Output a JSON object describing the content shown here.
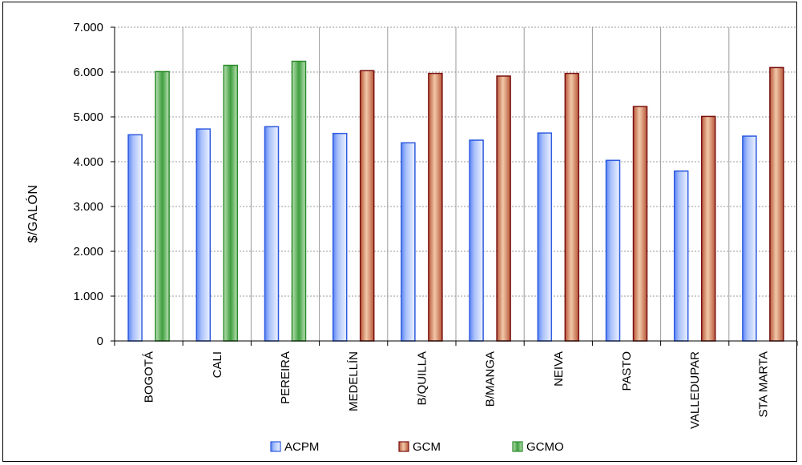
{
  "chart_data": {
    "type": "bar",
    "title": "",
    "xlabel": "",
    "ylabel": "$/GALÓN",
    "ylim": [
      0,
      7000
    ],
    "yticks": [
      0,
      1000,
      2000,
      3000,
      4000,
      5000,
      6000,
      7000
    ],
    "ytick_labels": [
      "0",
      "1.000",
      "2.000",
      "3.000",
      "4.000",
      "5.000",
      "6.000",
      "7.000"
    ],
    "grid": true,
    "legend_position": "bottom",
    "categories": [
      "BOGOTÁ",
      "CALI",
      "PEREIRA",
      "MEDELLÍN",
      "B/QUILLA",
      "B/MANGA",
      "NEIVA",
      "PASTO",
      "VALLEDUPAR",
      "STA MARTA"
    ],
    "series": [
      {
        "name": "ACPM",
        "color": "#4f7df0",
        "values": [
          4600,
          4730,
          4780,
          4630,
          4420,
          4480,
          4640,
          4030,
          3790,
          4570
        ]
      },
      {
        "name": "GCM",
        "color": "#a0522d",
        "values": [
          null,
          null,
          null,
          6030,
          5970,
          5910,
          5970,
          5230,
          5010,
          6100
        ]
      },
      {
        "name": "GCMO",
        "color": "#3a9a3a",
        "values": [
          6010,
          6150,
          6240,
          null,
          null,
          null,
          null,
          null,
          null,
          null
        ]
      }
    ]
  }
}
